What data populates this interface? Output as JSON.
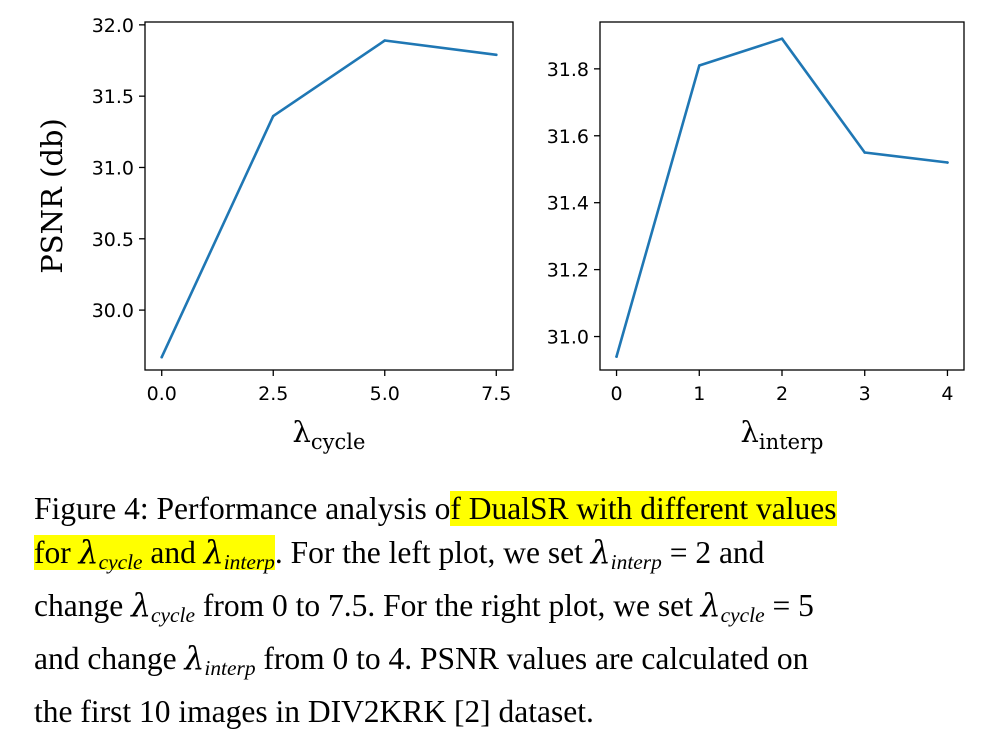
{
  "chart_data": [
    {
      "type": "line",
      "x": [
        0.0,
        2.5,
        5.0,
        7.5
      ],
      "y": [
        29.67,
        31.36,
        31.89,
        31.79
      ],
      "xlim": [
        -0.375,
        7.875
      ],
      "ylim": [
        29.58,
        32.02
      ],
      "xticks": [
        "0.0",
        "2.5",
        "5.0",
        "7.5"
      ],
      "yticks": [
        "30.0",
        "30.5",
        "31.0",
        "31.5",
        "32.0"
      ],
      "xlabel": {
        "symbol": "λ",
        "sub": "cycle"
      },
      "ylabel": "PSNR (db)",
      "color": "#1f77b4",
      "grid": false
    },
    {
      "type": "line",
      "x": [
        0,
        1,
        2,
        3,
        4
      ],
      "y": [
        30.94,
        31.81,
        31.89,
        31.55,
        31.52
      ],
      "xlim": [
        -0.2,
        4.2
      ],
      "ylim": [
        30.9,
        31.94
      ],
      "xticks": [
        "0",
        "1",
        "2",
        "3",
        "4"
      ],
      "yticks": [
        "31.0",
        "31.2",
        "31.4",
        "31.6",
        "31.8"
      ],
      "xlabel": {
        "symbol": "λ",
        "sub": "interp"
      },
      "ylabel": "",
      "color": "#1f77b4",
      "grid": false
    }
  ],
  "caption": {
    "label": "Figure 4:",
    "line1_plain": " Performance analysis o",
    "line1_hl": "f DualSR with different values",
    "line2_hl_a": "for ",
    "line2_hl_b": " and ",
    "line2_rest_a": ". For the left plot, we set ",
    "line2_rest_b": " = 2 and",
    "line3_a": "change ",
    "line3_b": " from 0 to 7.5. For the right plot, we set ",
    "line3_c": " = 5",
    "line4_a": "and change ",
    "line4_b": " from 0 to 4.  PSNR values are calculated on",
    "line5": "the first 10 images in DIV2KRK [2] dataset.",
    "lambda": "λ",
    "sub_cycle": "cycle",
    "sub_interp": "interp"
  }
}
